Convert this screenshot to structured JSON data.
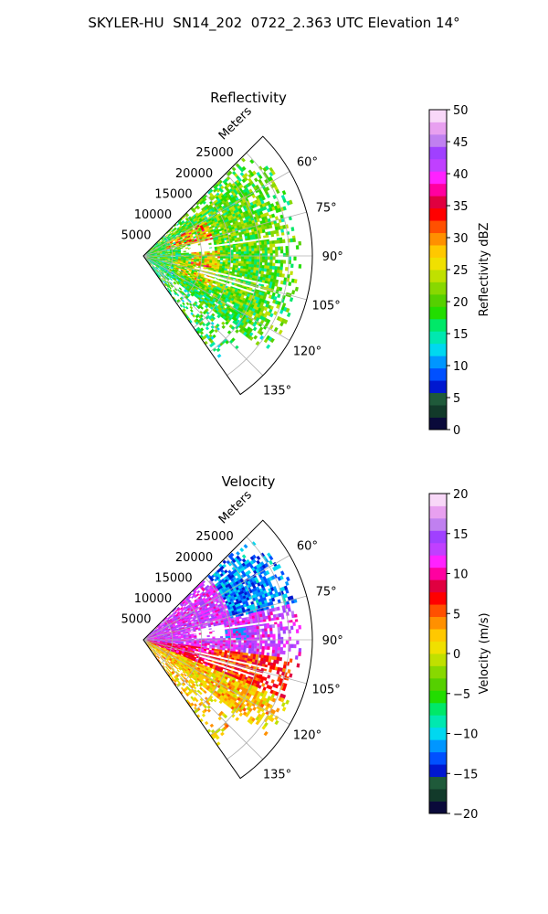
{
  "title": "SKYLER-HU  SN14_202  0722_2.363 UTC Elevation 14°",
  "chart_data": [
    {
      "type": "heatmap",
      "projection": "polar-sector",
      "title": "Reflectivity",
      "radial_axis_label": "Meters",
      "range_ticks": [
        5000,
        10000,
        15000,
        20000,
        25000
      ],
      "range_tick_labels": [
        "5000",
        "10000",
        "15000",
        "20000",
        "25000"
      ],
      "azimuth_range_deg": [
        45,
        145
      ],
      "azimuth_ticks": [
        60,
        75,
        90,
        105,
        120,
        135
      ],
      "azimuth_tick_labels": [
        "60°",
        "75°",
        "90°",
        "105°",
        "120°",
        "135°"
      ],
      "max_range": 29000,
      "grid": true,
      "colorbar": {
        "label": "Reflectivity dBZ",
        "min": 0,
        "max": 50,
        "ticks": [
          0,
          5,
          10,
          15,
          20,
          25,
          30,
          35,
          40,
          45,
          50
        ],
        "tick_labels": [
          "0",
          "5",
          "10",
          "15",
          "20",
          "25",
          "30",
          "35",
          "40",
          "45",
          "50"
        ],
        "colormap": [
          "#0a0a3a",
          "#123a2a",
          "#1f5a3a",
          "#0018d0",
          "#0050ff",
          "#0096ff",
          "#00d8f0",
          "#00e8b0",
          "#00e868",
          "#22dd00",
          "#55d000",
          "#88d800",
          "#c0e000",
          "#f0e000",
          "#ffc800",
          "#ff9000",
          "#ff5000",
          "#ff0000",
          "#e00040",
          "#ff00a0",
          "#ff22ff",
          "#c040ff",
          "#a040ff",
          "#c080f0",
          "#e8a0f0",
          "#f8d8f8"
        ]
      },
      "field_summary": [
        {
          "az": [
            48,
            70
          ],
          "r": [
            2000,
            26500
          ],
          "dominant_value_dBZ": 22,
          "note": "speckled echoes, strongest cores 30-38 dBZ near 8000 m"
        },
        {
          "az": [
            70,
            110
          ],
          "r": [
            0,
            27000
          ],
          "dominant_value_dBZ": 23,
          "note": "broad 20-30 dBZ field with weak gap near 80° 8000 m"
        },
        {
          "az": [
            110,
            145
          ],
          "r": [
            2000,
            26000
          ],
          "dominant_value_dBZ": 20,
          "note": "scattered weaker echoes"
        }
      ]
    },
    {
      "type": "heatmap",
      "projection": "polar-sector",
      "title": "Velocity",
      "radial_axis_label": "Meters",
      "range_ticks": [
        5000,
        10000,
        15000,
        20000,
        25000
      ],
      "range_tick_labels": [
        "5000",
        "10000",
        "15000",
        "20000",
        "25000"
      ],
      "azimuth_range_deg": [
        45,
        145
      ],
      "azimuth_ticks": [
        60,
        75,
        90,
        105,
        120,
        135
      ],
      "azimuth_tick_labels": [
        "60°",
        "75°",
        "90°",
        "105°",
        "120°",
        "135°"
      ],
      "max_range": 29000,
      "grid": true,
      "colorbar": {
        "label": "Velocity (m/s)",
        "min": -20,
        "max": 20,
        "ticks": [
          -20,
          -15,
          -10,
          -5,
          0,
          5,
          10,
          15,
          20
        ],
        "tick_labels": [
          "−20",
          "−15",
          "−10",
          "−5",
          "0",
          "5",
          "10",
          "15",
          "20"
        ],
        "colormap": [
          "#0a0a3a",
          "#123a2a",
          "#1f5a3a",
          "#0018d0",
          "#0050ff",
          "#0096ff",
          "#00d8f0",
          "#00e8b0",
          "#00e868",
          "#22dd00",
          "#55d000",
          "#88d800",
          "#c0e000",
          "#f0e000",
          "#ffc800",
          "#ff9000",
          "#ff5000",
          "#ff0000",
          "#e00040",
          "#ff00a0",
          "#ff22ff",
          "#c040ff",
          "#a040ff",
          "#c080f0",
          "#e8a0f0",
          "#f8d8f8"
        ]
      },
      "field_summary": [
        {
          "az": [
            55,
            75
          ],
          "r": [
            15000,
            27000
          ],
          "dominant_value_ms": -13,
          "note": "cyan/blue inbound region at far range"
        },
        {
          "az": [
            60,
            95
          ],
          "r": [
            0,
            22000
          ],
          "dominant_value_ms": 14,
          "note": "magenta/purple outbound"
        },
        {
          "az": [
            95,
            145
          ],
          "r": [
            0,
            27000
          ],
          "dominant_value_ms": 3,
          "note": "yellow-orange near zero to weakly positive"
        }
      ]
    }
  ]
}
